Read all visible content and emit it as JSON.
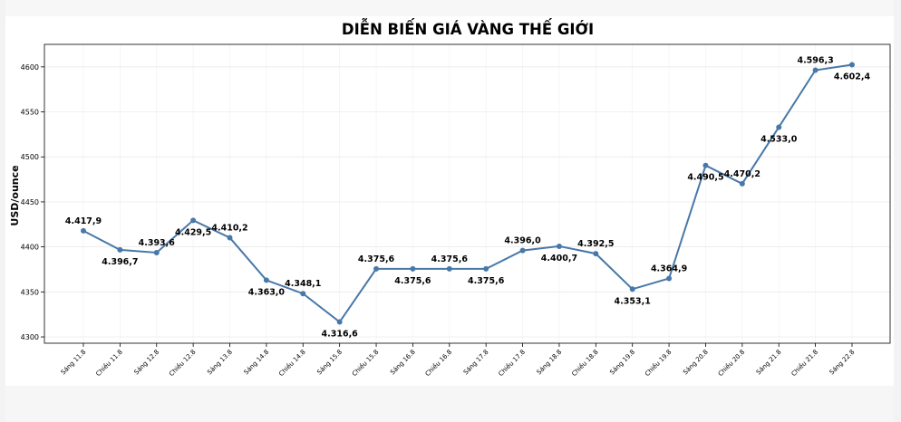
{
  "chart_data": {
    "type": "line",
    "title": "DIỄN BIẾN GIÁ VÀNG THẾ GIỚI",
    "xlabel": "",
    "ylabel": "USD/ounce",
    "ylim": [
      4293,
      4625
    ],
    "yticks": [
      4300,
      4350,
      4400,
      4450,
      4500,
      4550,
      4600
    ],
    "grid": true,
    "line_color": "#4878a8",
    "categories": [
      "Sáng 11.8",
      "Chiều 11.8",
      "Sáng 12.8",
      "Chiều 12.8",
      "Sáng 13.8",
      "Sáng 14.8",
      "Chiều 14.8",
      "Sáng 15.8",
      "Chiều 15.8",
      "Sáng 16.8",
      "Chiều 16.8",
      "Sáng 17.8",
      "Chiều 17.8",
      "Sáng 18.8",
      "Chiều 18.8",
      "Sáng 19.8",
      "Chiều 19.8",
      "Sáng 20.8",
      "Chiều 20.8",
      "Sáng 21.8",
      "Chiều 21.8",
      "Sáng 22.8"
    ],
    "values": [
      4417.9,
      4396.7,
      4393.6,
      4429.5,
      4410.2,
      4363.0,
      4348.1,
      4316.6,
      4375.6,
      4375.6,
      4375.6,
      4375.6,
      4396.0,
      4400.7,
      4392.5,
      4353.1,
      4364.9,
      4490.5,
      4470.2,
      4533.0,
      4596.3,
      4602.4
    ],
    "labels": [
      "4.417,9",
      "4.396,7",
      "4.393,6",
      "4.429,5",
      "4.410,2",
      "4.363,0",
      "4.348,1",
      "4.316,6",
      "4.375,6",
      "4.375,6",
      "4.375,6",
      "4.375,6",
      "4.396,0",
      "4.400,7",
      "4.392,5",
      "4.353,1",
      "4.364,9",
      "4.490,5",
      "4.470,2",
      "4.533,0",
      "4.596,3",
      "4.602,4"
    ],
    "label_positions": [
      "above",
      "below",
      "above",
      "below",
      "above",
      "below",
      "above",
      "below",
      "above",
      "below",
      "above",
      "below",
      "above",
      "below",
      "above",
      "below",
      "above",
      "below",
      "above",
      "below",
      "above",
      "below"
    ]
  }
}
